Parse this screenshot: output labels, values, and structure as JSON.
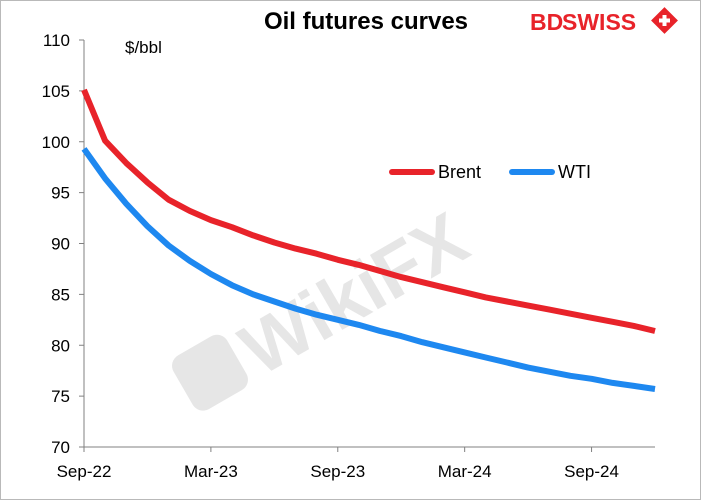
{
  "brand": {
    "logo_text_bd": "BD",
    "logo_text_swiss": "SWISS",
    "logo_color": "#e8232a"
  },
  "watermark": {
    "text": "WikiFX"
  },
  "chart_data": {
    "type": "line",
    "title": "Oil futures curves",
    "ylabel": "$/bbl",
    "xlabel": "",
    "ylim": [
      70,
      110
    ],
    "yticks": [
      70,
      75,
      80,
      85,
      90,
      95,
      100,
      105,
      110
    ],
    "xlim": [
      "2022-09",
      "2024-12"
    ],
    "xticks": [
      "2022-09",
      "2023-03",
      "2023-09",
      "2024-03",
      "2024-09"
    ],
    "xtick_labels": [
      "Sep-22",
      "Mar-23",
      "Sep-23",
      "Mar-24",
      "Sep-24"
    ],
    "x": [
      "2022-09",
      "2022-10",
      "2022-11",
      "2022-12",
      "2023-01",
      "2023-02",
      "2023-03",
      "2023-04",
      "2023-05",
      "2023-06",
      "2023-07",
      "2023-08",
      "2023-09",
      "2023-10",
      "2023-11",
      "2023-12",
      "2024-01",
      "2024-02",
      "2024-03",
      "2024-04",
      "2024-05",
      "2024-06",
      "2024-07",
      "2024-08",
      "2024-09",
      "2024-10",
      "2024-11",
      "2024-12"
    ],
    "series": [
      {
        "name": "Brent",
        "color": "#e8232a",
        "values": [
          105.1,
          100.1,
          97.9,
          96.0,
          94.3,
          93.2,
          92.3,
          91.6,
          90.8,
          90.1,
          89.5,
          89.0,
          88.4,
          87.9,
          87.3,
          86.7,
          86.2,
          85.7,
          85.2,
          84.7,
          84.3,
          83.9,
          83.5,
          83.1,
          82.7,
          82.3,
          81.9,
          81.4
        ]
      },
      {
        "name": "WTI",
        "color": "#1e88f0",
        "values": [
          99.3,
          96.4,
          93.9,
          91.7,
          89.8,
          88.3,
          87.0,
          85.9,
          85.0,
          84.3,
          83.6,
          83.0,
          82.5,
          82.0,
          81.4,
          80.9,
          80.3,
          79.8,
          79.3,
          78.8,
          78.3,
          77.8,
          77.4,
          77.0,
          76.7,
          76.3,
          76.0,
          75.7
        ]
      }
    ],
    "legend_position": "top-right",
    "grid": false
  }
}
